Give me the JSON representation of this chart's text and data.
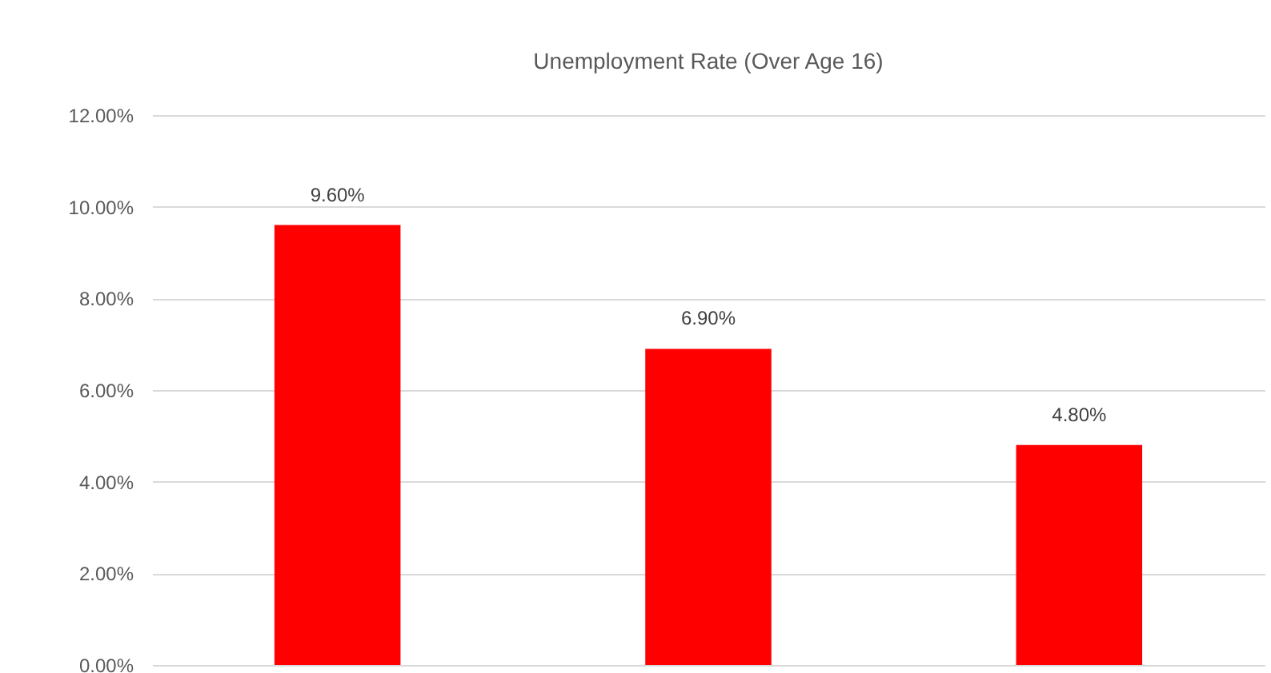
{
  "chart_data": {
    "type": "bar",
    "title": "Unemployment Rate (Over Age 16)",
    "categories": [
      null,
      null,
      null
    ],
    "values": [
      9.6,
      6.9,
      4.8
    ],
    "color": "#ff0000",
    "value_labels": [
      "9.60%",
      "6.90%",
      "4.80%"
    ],
    "ylim": [
      0,
      12
    ],
    "yticks": [
      {
        "value": 0,
        "label": "0.00%"
      },
      {
        "value": 2,
        "label": "2.00%"
      },
      {
        "value": 4,
        "label": "4.00%"
      },
      {
        "value": 6,
        "label": "6.00%"
      },
      {
        "value": 8,
        "label": "8.00%"
      },
      {
        "value": 10,
        "label": "10.00%"
      },
      {
        "value": 12,
        "label": "12.00%"
      }
    ],
    "grid": "y"
  }
}
